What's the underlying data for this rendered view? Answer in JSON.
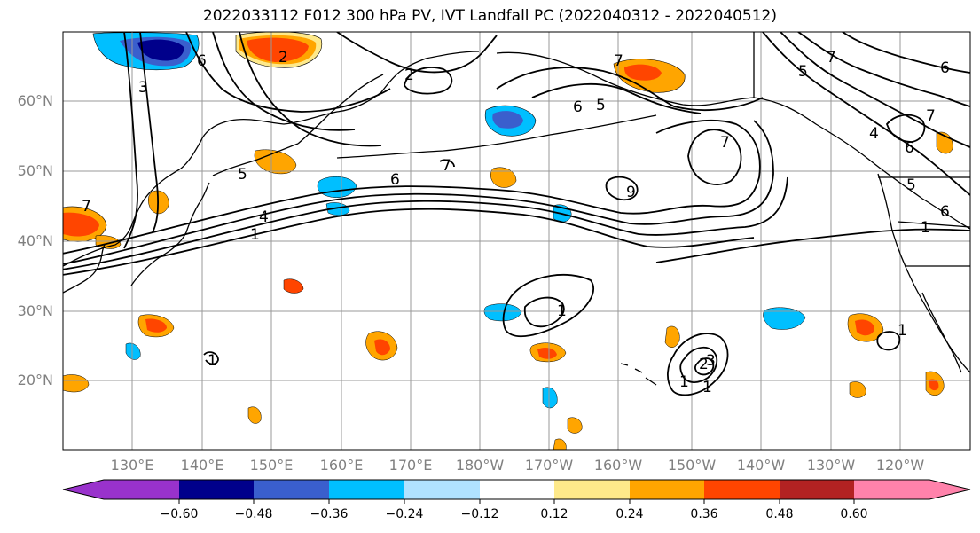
{
  "title": "2022033112 F012 300 hPa PV, IVT Landfall PC (2022040312 - 2022040512)",
  "map": {
    "lat_labels": [
      "60°N",
      "50°N",
      "40°N",
      "30°N",
      "20°N"
    ],
    "lon_labels": [
      "130°E",
      "140°E",
      "150°E",
      "160°E",
      "170°E",
      "180°W",
      "170°W",
      "160°W",
      "150°W",
      "140°W",
      "130°W",
      "120°W"
    ],
    "contour_labels": [
      "3",
      "6",
      "5",
      "2",
      "7",
      "6",
      "5",
      "6",
      "7",
      "7",
      "6",
      "7",
      "5",
      "6",
      "5",
      "6",
      "4",
      "7",
      "1",
      "2",
      "9",
      "1",
      "1",
      "1",
      "2",
      "3",
      "1",
      "1",
      "1",
      "4",
      "7"
    ],
    "land_color": "#000000",
    "contour_color": "#000000",
    "grid_color": "#999999"
  },
  "colorbar": {
    "ticks": [
      "−0.60",
      "−0.48",
      "−0.36",
      "−0.24",
      "−0.12",
      "0.12",
      "0.24",
      "0.36",
      "0.48",
      "0.60"
    ],
    "colors": [
      "#9932cc",
      "#00008b",
      "#3a5fcd",
      "#00bfff",
      "#b0e2ff",
      "#ffffff",
      "#fee98a",
      "#ffa500",
      "#ff4500",
      "#b22222",
      "#ff82ab"
    ]
  }
}
